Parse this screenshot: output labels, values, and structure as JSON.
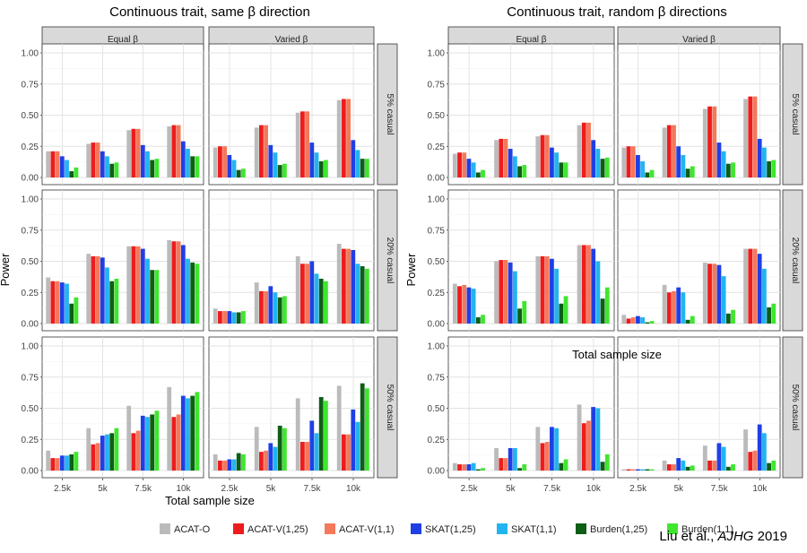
{
  "citation": {
    "authors": "Liu et al.,",
    "journal": "AJHG",
    "year": "2019"
  },
  "legend": {
    "entries": [
      {
        "name": "ACAT-O",
        "color": "#BBBBBB"
      },
      {
        "name": "ACAT-V(1,25)",
        "color": "#EE1C1C"
      },
      {
        "name": "ACAT-V(1,1)",
        "color": "#F4785A"
      },
      {
        "name": "SKAT(1,25)",
        "color": "#1F3FE6"
      },
      {
        "name": "SKAT(1,1)",
        "color": "#22B4F0"
      },
      {
        "name": "Burden(1,25)",
        "color": "#0E5E14"
      },
      {
        "name": "Burden(1,1)",
        "color": "#3FE62F"
      }
    ]
  },
  "chart_data": [
    {
      "type": "bar",
      "title": "Continuous trait, same β direction",
      "xlabel": "Total sample size",
      "ylabel": "Power",
      "ylim": [
        0,
        1
      ],
      "yticks": [
        "0.00",
        "0.25",
        "0.50",
        "0.75",
        "1.00"
      ],
      "categories": [
        "2.5k",
        "5k",
        "7.5k",
        "10k"
      ],
      "columns": [
        "Equal β",
        "Varied β"
      ],
      "rows": [
        "5% casual",
        "20% casual",
        "50% casual"
      ],
      "panels": [
        [
          [
            [
              0.21,
              0.21,
              0.21,
              0.17,
              0.14,
              0.05,
              0.08
            ],
            [
              0.27,
              0.28,
              0.28,
              0.21,
              0.17,
              0.11,
              0.12
            ],
            [
              0.38,
              0.39,
              0.39,
              0.26,
              0.21,
              0.14,
              0.15
            ],
            [
              0.41,
              0.42,
              0.42,
              0.29,
              0.23,
              0.17,
              0.17
            ]
          ],
          [
            [
              0.24,
              0.25,
              0.25,
              0.18,
              0.14,
              0.06,
              0.07
            ],
            [
              0.4,
              0.42,
              0.42,
              0.26,
              0.2,
              0.1,
              0.11
            ],
            [
              0.52,
              0.53,
              0.53,
              0.28,
              0.2,
              0.13,
              0.14
            ],
            [
              0.62,
              0.63,
              0.63,
              0.3,
              0.22,
              0.15,
              0.15
            ]
          ]
        ],
        [
          [
            [
              0.37,
              0.34,
              0.34,
              0.33,
              0.32,
              0.16,
              0.21
            ],
            [
              0.56,
              0.54,
              0.54,
              0.53,
              0.45,
              0.34,
              0.36
            ],
            [
              0.62,
              0.62,
              0.62,
              0.6,
              0.52,
              0.43,
              0.43
            ],
            [
              0.67,
              0.66,
              0.66,
              0.63,
              0.52,
              0.49,
              0.48
            ]
          ],
          [
            [
              0.12,
              0.1,
              0.1,
              0.1,
              0.09,
              0.09,
              0.1
            ],
            [
              0.33,
              0.26,
              0.26,
              0.3,
              0.25,
              0.21,
              0.22
            ],
            [
              0.54,
              0.48,
              0.48,
              0.5,
              0.4,
              0.36,
              0.34
            ],
            [
              0.64,
              0.6,
              0.6,
              0.59,
              0.48,
              0.46,
              0.44
            ]
          ]
        ],
        [
          [
            [
              0.16,
              0.1,
              0.1,
              0.12,
              0.12,
              0.13,
              0.15
            ],
            [
              0.34,
              0.21,
              0.22,
              0.28,
              0.29,
              0.3,
              0.34
            ],
            [
              0.52,
              0.3,
              0.32,
              0.44,
              0.43,
              0.45,
              0.48
            ],
            [
              0.67,
              0.43,
              0.45,
              0.6,
              0.58,
              0.6,
              0.63
            ]
          ],
          [
            [
              0.13,
              0.08,
              0.08,
              0.09,
              0.09,
              0.14,
              0.13
            ],
            [
              0.35,
              0.15,
              0.16,
              0.22,
              0.19,
              0.36,
              0.34
            ],
            [
              0.58,
              0.23,
              0.23,
              0.4,
              0.3,
              0.59,
              0.56
            ],
            [
              0.68,
              0.29,
              0.29,
              0.49,
              0.39,
              0.7,
              0.66
            ]
          ]
        ]
      ]
    },
    {
      "type": "bar",
      "title": "Continuous trait, random β directions",
      "xlabel": "Total sample size",
      "ylabel": "Power",
      "ylim": [
        0,
        1
      ],
      "yticks": [
        "0.00",
        "0.25",
        "0.50",
        "0.75",
        "1.00"
      ],
      "categories": [
        "2.5k",
        "5k",
        "7.5k",
        "10k"
      ],
      "columns": [
        "Equal β",
        "Varied β"
      ],
      "rows": [
        "5% casual",
        "20% casual",
        "50% casual"
      ],
      "panels": [
        [
          [
            [
              0.19,
              0.2,
              0.2,
              0.15,
              0.12,
              0.04,
              0.06
            ],
            [
              0.3,
              0.31,
              0.31,
              0.23,
              0.17,
              0.09,
              0.1
            ],
            [
              0.33,
              0.34,
              0.34,
              0.24,
              0.2,
              0.12,
              0.12
            ],
            [
              0.42,
              0.44,
              0.44,
              0.3,
              0.23,
              0.15,
              0.16
            ]
          ],
          [
            [
              0.24,
              0.25,
              0.25,
              0.18,
              0.13,
              0.04,
              0.06
            ],
            [
              0.4,
              0.42,
              0.42,
              0.25,
              0.18,
              0.07,
              0.09
            ],
            [
              0.55,
              0.57,
              0.57,
              0.28,
              0.21,
              0.11,
              0.12
            ],
            [
              0.63,
              0.65,
              0.65,
              0.31,
              0.24,
              0.13,
              0.14
            ]
          ]
        ],
        [
          [
            [
              0.32,
              0.3,
              0.31,
              0.29,
              0.28,
              0.05,
              0.07
            ],
            [
              0.5,
              0.51,
              0.51,
              0.49,
              0.42,
              0.12,
              0.18
            ],
            [
              0.54,
              0.54,
              0.54,
              0.52,
              0.44,
              0.16,
              0.22
            ],
            [
              0.63,
              0.63,
              0.63,
              0.6,
              0.5,
              0.2,
              0.29
            ]
          ],
          [
            [
              0.07,
              0.04,
              0.05,
              0.06,
              0.05,
              0.01,
              0.02
            ],
            [
              0.31,
              0.25,
              0.26,
              0.29,
              0.25,
              0.03,
              0.06
            ],
            [
              0.49,
              0.48,
              0.48,
              0.47,
              0.38,
              0.08,
              0.11
            ],
            [
              0.6,
              0.6,
              0.6,
              0.56,
              0.44,
              0.13,
              0.16
            ]
          ]
        ],
        [
          [
            [
              0.06,
              0.05,
              0.05,
              0.05,
              0.06,
              0.01,
              0.02
            ],
            [
              0.18,
              0.1,
              0.1,
              0.18,
              0.18,
              0.02,
              0.05
            ],
            [
              0.35,
              0.22,
              0.23,
              0.35,
              0.34,
              0.06,
              0.09
            ],
            [
              0.53,
              0.38,
              0.4,
              0.51,
              0.5,
              0.07,
              0.13
            ]
          ],
          [
            [
              0.01,
              0.01,
              0.01,
              0.01,
              0.01,
              0.01,
              0.01
            ],
            [
              0.08,
              0.05,
              0.05,
              0.1,
              0.08,
              0.03,
              0.04
            ],
            [
              0.2,
              0.08,
              0.08,
              0.22,
              0.19,
              0.03,
              0.05
            ],
            [
              0.33,
              0.15,
              0.16,
              0.37,
              0.3,
              0.06,
              0.08
            ]
          ]
        ]
      ]
    }
  ]
}
